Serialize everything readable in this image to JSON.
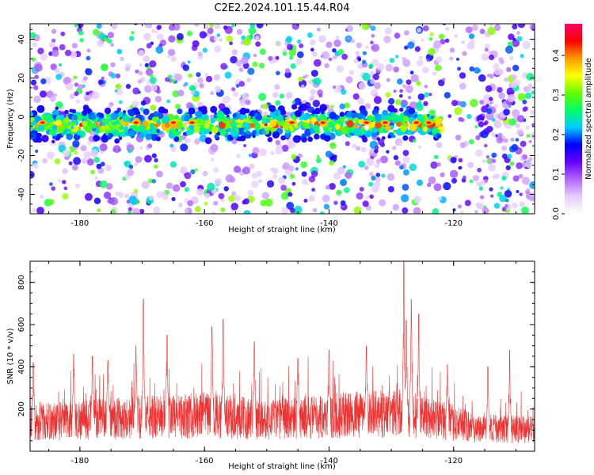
{
  "title": "C2E2.2024.101.15.44.R04",
  "chart_data": [
    {
      "type": "heatmap",
      "xlabel": "Height of straight line (km)",
      "ylabel": "Frequency (Hz)",
      "xlim": [
        -188,
        -107
      ],
      "ylim": [
        -50,
        48
      ],
      "x_ticks": [
        -180,
        -160,
        -140,
        -120
      ],
      "y_ticks": [
        -40,
        -20,
        0,
        20,
        40
      ],
      "signal_band": {
        "center_hz": -4,
        "x_start": -188,
        "x_end": -122
      },
      "colorbar": {
        "label": "Normalized spectral amplitude",
        "range": [
          0,
          0.48
        ],
        "ticks": [
          0.0,
          0.1,
          0.2,
          0.3,
          0.4
        ],
        "colors": [
          "#ffffff",
          "#e6ccff",
          "#b266ff",
          "#6600ff",
          "#0000ff",
          "#00ccff",
          "#00ff66",
          "#66ff00",
          "#ffff00",
          "#ff9900",
          "#ff0000",
          "#ff0066"
        ]
      },
      "grid": false
    },
    {
      "type": "line",
      "xlabel": "Height of straight line (km)",
      "ylabel": "SNR (10 * v/v)",
      "xlim": [
        -188,
        -107
      ],
      "ylim": [
        0,
        900
      ],
      "x_ticks": [
        -180,
        -160,
        -140,
        -120
      ],
      "y_ticks": [
        200,
        400,
        600,
        800
      ],
      "color": "#ee3333",
      "baseline": [
        [
          -188,
          140
        ],
        [
          -175,
          160
        ],
        [
          -160,
          175
        ],
        [
          -150,
          155
        ],
        [
          -140,
          170
        ],
        [
          -128,
          185
        ],
        [
          -122,
          150
        ],
        [
          -116,
          110
        ],
        [
          -107,
          105
        ]
      ],
      "peaks": [
        [
          -187.5,
          420
        ],
        [
          -169.8,
          720
        ],
        [
          -157,
          625
        ],
        [
          -158.8,
          590
        ],
        [
          -152,
          520
        ],
        [
          -128,
          900
        ],
        [
          -126.8,
          720
        ],
        [
          -125.6,
          650
        ],
        [
          -127.6,
          620
        ],
        [
          -134,
          500
        ],
        [
          -140,
          480
        ],
        [
          -166,
          550
        ],
        [
          -178,
          450
        ],
        [
          -111,
          480
        ],
        [
          -114.5,
          400
        ],
        [
          -181,
          460
        ],
        [
          -171,
          500
        ],
        [
          -145,
          440
        ],
        [
          -121,
          410
        ],
        [
          -175.5,
          430
        ]
      ],
      "grid": false
    }
  ]
}
